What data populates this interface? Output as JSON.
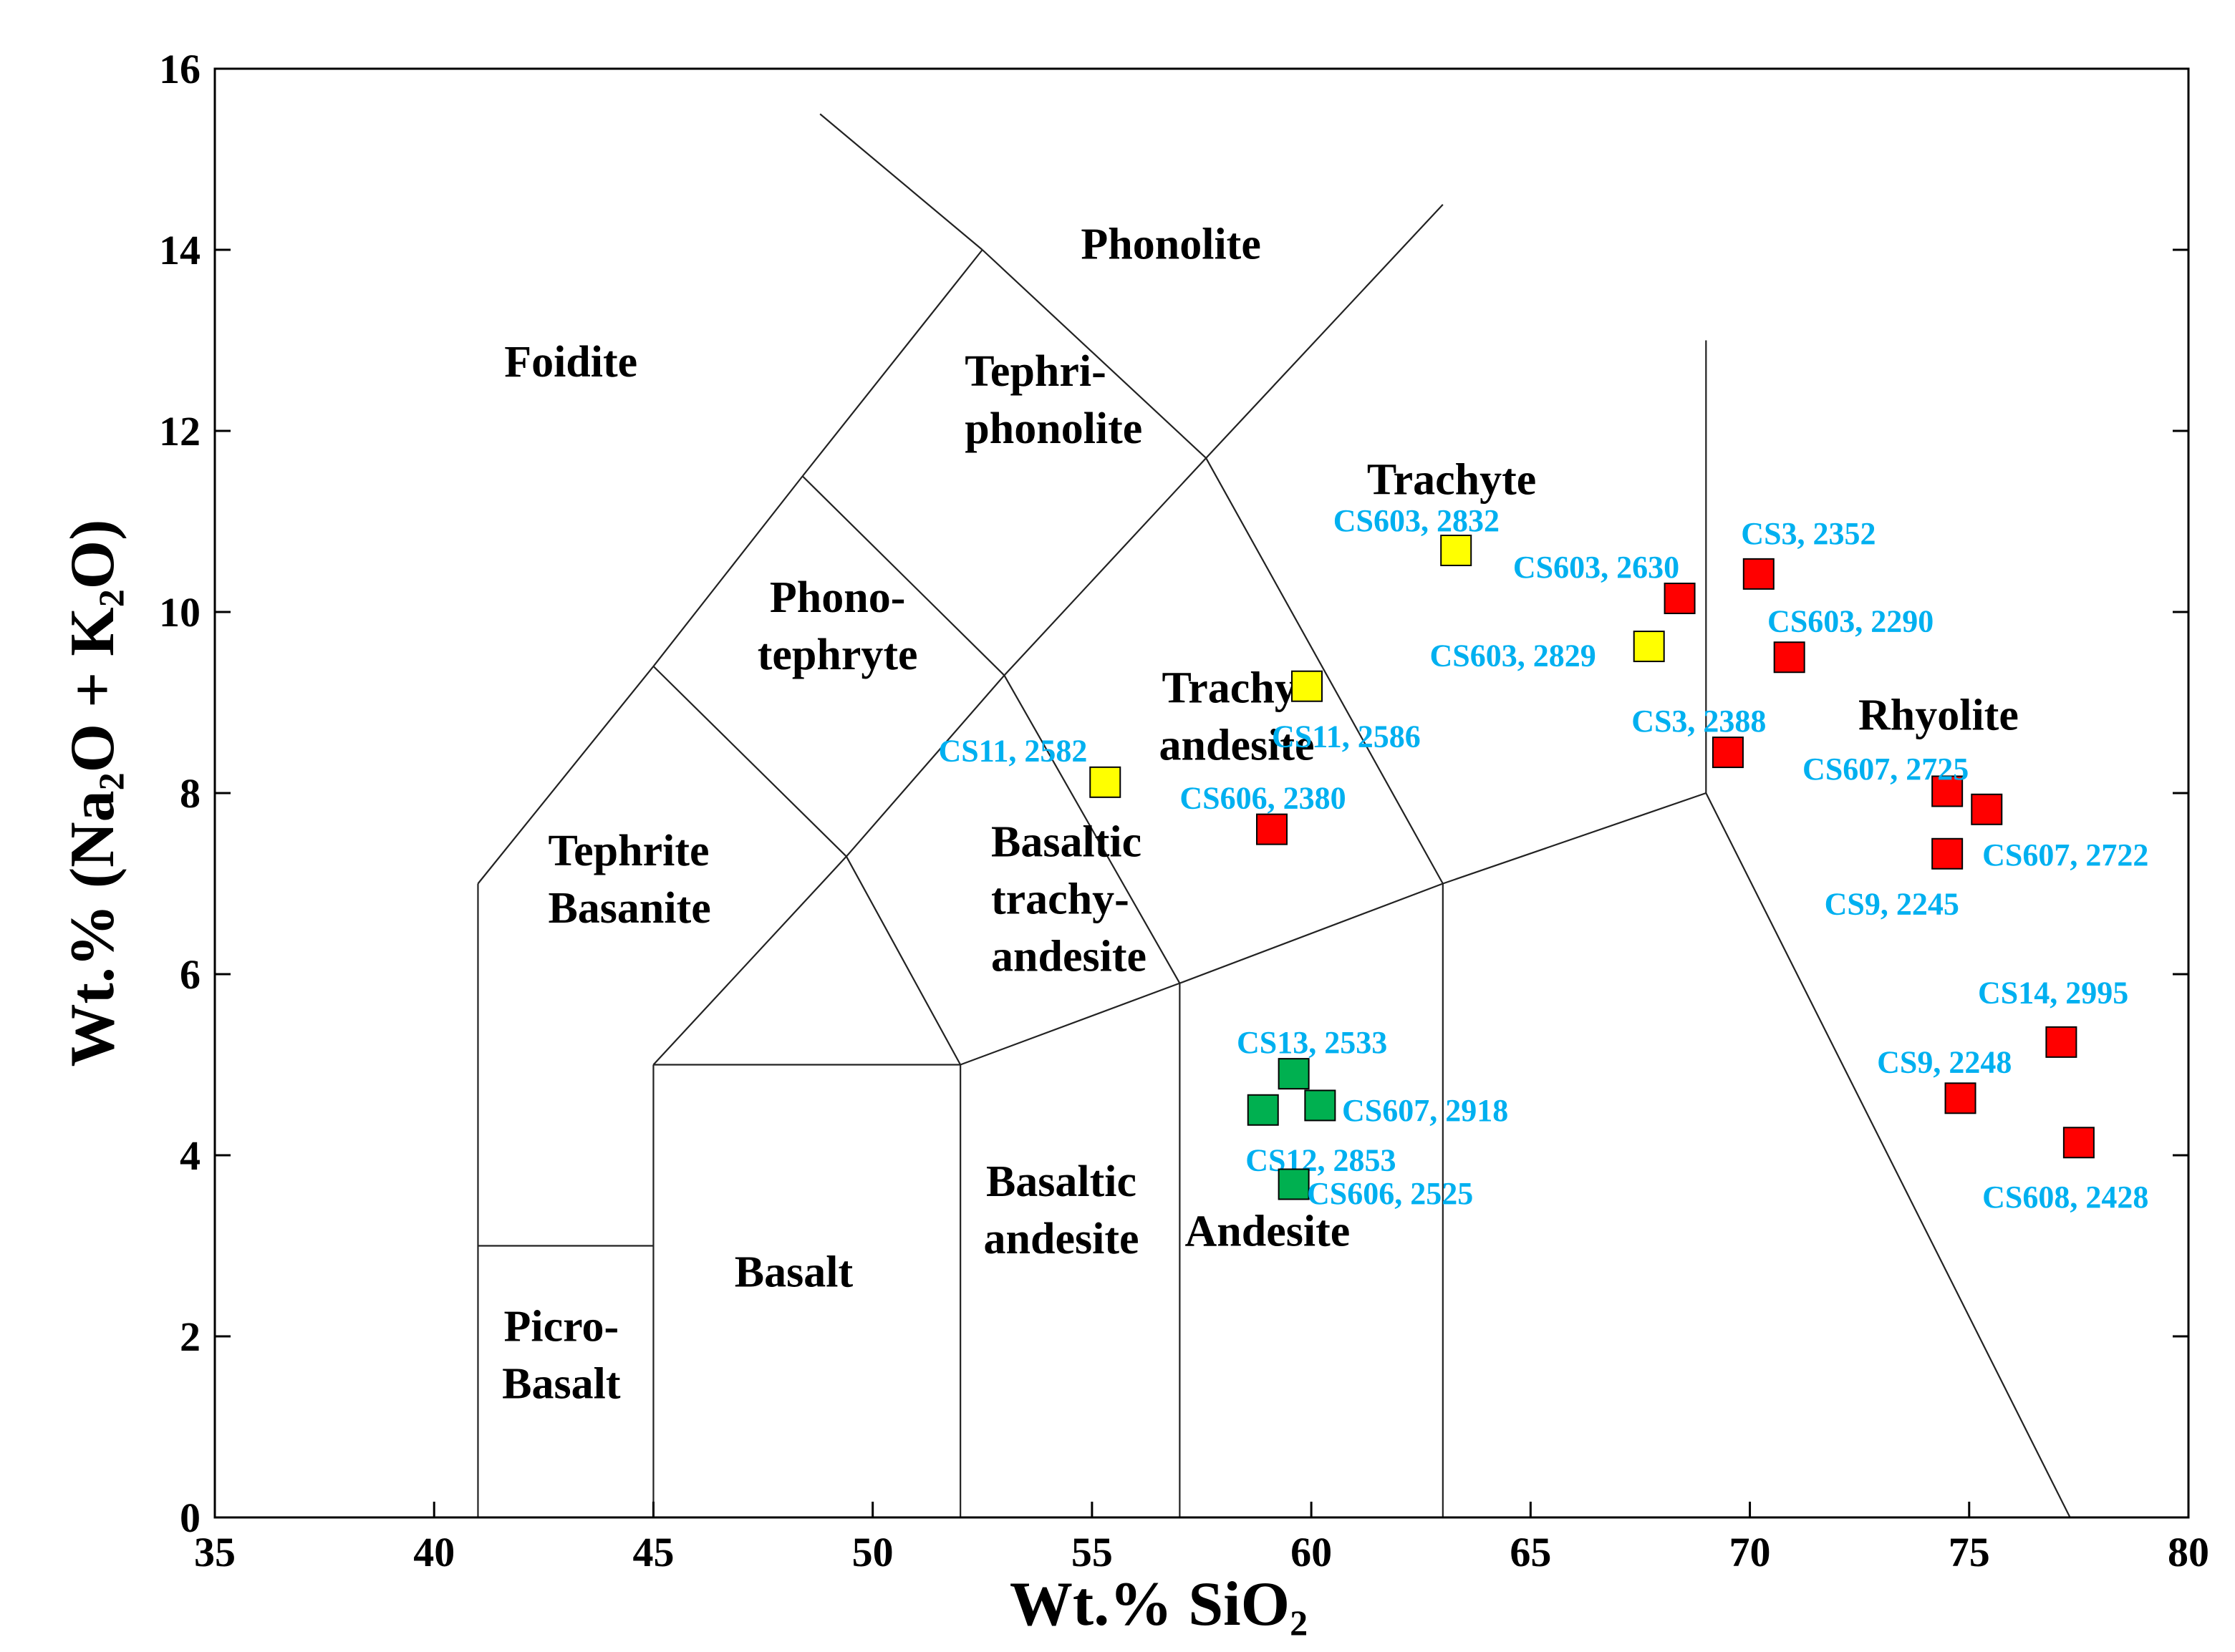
{
  "chart_data": {
    "type": "scatter",
    "title": "",
    "xlabel": "Wt.% SiO",
    "xlabel_sub": "2",
    "ylabel_parts": [
      "Wt.% (Na",
      "2",
      "O + K",
      "2",
      "O)"
    ],
    "xlim": [
      35,
      80
    ],
    "ylim": [
      0,
      16
    ],
    "x_ticks": [
      35,
      40,
      45,
      50,
      55,
      60,
      65,
      70,
      75,
      80
    ],
    "y_ticks": [
      0,
      2,
      4,
      6,
      8,
      10,
      12,
      14,
      16
    ],
    "grid": false,
    "colors": {
      "red": "#ff0000",
      "yellow": "#ffff00",
      "green": "#00b050",
      "label": "#00b0f0"
    },
    "fields": [
      {
        "name": "foidite",
        "lines": [
          "Foidite"
        ]
      },
      {
        "name": "phonolite",
        "lines": [
          "Phonolite"
        ]
      },
      {
        "name": "tephriphonolite",
        "lines": [
          "Tephri-",
          "phonolite"
        ]
      },
      {
        "name": "trachyte",
        "lines": [
          "Trachyte"
        ]
      },
      {
        "name": "phonotephryte",
        "lines": [
          "Phono-",
          "tephryte"
        ]
      },
      {
        "name": "trachyandesite",
        "lines": [
          "Trachy-",
          "andesite"
        ]
      },
      {
        "name": "rhyolite",
        "lines": [
          "Rhyolite"
        ]
      },
      {
        "name": "tephrite-basanite",
        "lines": [
          "Tephrite",
          "Basanite"
        ]
      },
      {
        "name": "basaltic-trachyandesite",
        "lines": [
          "Basaltic",
          "trachy-",
          "andesite"
        ]
      },
      {
        "name": "basaltic-andesite",
        "lines": [
          "Basaltic",
          "andesite"
        ]
      },
      {
        "name": "andesite",
        "lines": [
          "Andesite"
        ]
      },
      {
        "name": "basalt",
        "lines": [
          "Basalt"
        ]
      },
      {
        "name": "picrobasalt",
        "lines": [
          "Picro-",
          "Basalt"
        ]
      }
    ],
    "series": [
      {
        "name": "red",
        "color": "#ff0000",
        "points": [
          {
            "label": "CS603, 2630",
            "x": 68.4,
            "y": 10.15
          },
          {
            "label": "CS3, 2352",
            "x": 70.2,
            "y": 10.42
          },
          {
            "label": "CS603, 2290",
            "x": 70.9,
            "y": 9.5
          },
          {
            "label": "CS3, 2388",
            "x": 69.5,
            "y": 8.45
          },
          {
            "label": "CS607, 2725",
            "x": 74.5,
            "y": 8.02
          },
          {
            "label": "CS607, 2722",
            "x": 75.4,
            "y": 7.82
          },
          {
            "label": "CS9, 2245",
            "x": 74.5,
            "y": 7.33
          },
          {
            "label": "CS606, 2380",
            "x": 59.1,
            "y": 7.6
          },
          {
            "label": "CS14, 2995",
            "x": 77.1,
            "y": 5.25
          },
          {
            "label": "CS9, 2248",
            "x": 74.8,
            "y": 4.63
          },
          {
            "label": "CS608, 2428",
            "x": 77.5,
            "y": 4.14
          }
        ]
      },
      {
        "name": "yellow",
        "color": "#ffff00",
        "points": [
          {
            "label": "CS603, 2832",
            "x": 63.3,
            "y": 10.68
          },
          {
            "label": "CS603, 2829",
            "x": 67.7,
            "y": 9.62
          },
          {
            "label": "CS11, 2586",
            "x": 59.9,
            "y": 9.18
          },
          {
            "label": "CS11, 2582",
            "x": 55.3,
            "y": 8.12
          }
        ]
      },
      {
        "name": "green",
        "color": "#00b050",
        "points": [
          {
            "label": "CS13, 2533",
            "x": 59.6,
            "y": 4.9
          },
          {
            "label": "CS607, 2918",
            "x": 60.2,
            "y": 4.55
          },
          {
            "label": "CS12, 2853",
            "x": 58.9,
            "y": 4.5
          },
          {
            "label": "CS606, 2525",
            "x": 59.6,
            "y": 3.68
          }
        ]
      }
    ]
  }
}
